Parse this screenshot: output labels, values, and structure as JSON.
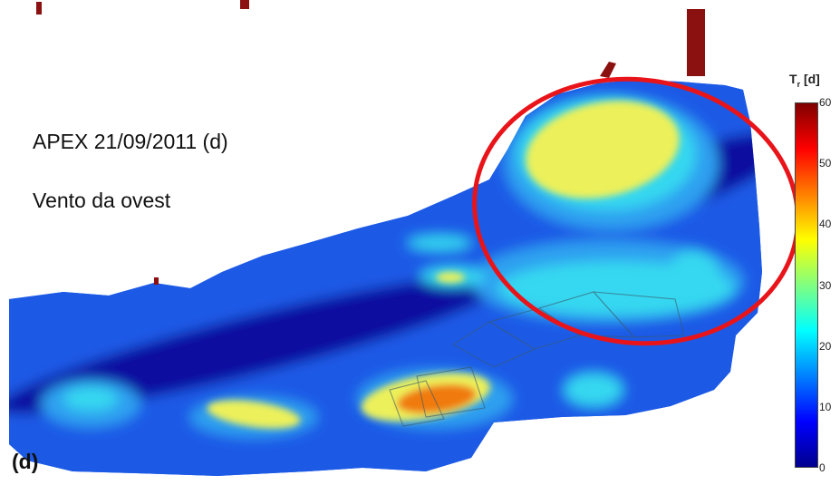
{
  "map": {
    "panel_label": "(d)",
    "caption_line1": "APEX 21/09/2011 (d)",
    "caption_line2": "Vento da ovest"
  },
  "legend": {
    "symbol": "T",
    "subscript": "r",
    "unit": "[d]",
    "min": 0,
    "max": 60,
    "ticks": [
      "60",
      "50",
      "40",
      "30",
      "20",
      "10",
      "0"
    ],
    "colormap": [
      "#00008f",
      "#0000ff",
      "#0080ff",
      "#00ffff",
      "#80ff80",
      "#ffff00",
      "#ff8000",
      "#ff0000",
      "#800000"
    ]
  },
  "highlight": {
    "shape": "ellipse",
    "color": "#e8141a"
  },
  "colors": {
    "deep": "#0a10a0",
    "navy": "#1428c8",
    "blue": "#1e5ae6",
    "mid": "#2ea0f0",
    "cyan": "#34d8f0",
    "yellow": "#ecf05a",
    "orange": "#f07a10",
    "land_stub": "#8b1010"
  }
}
